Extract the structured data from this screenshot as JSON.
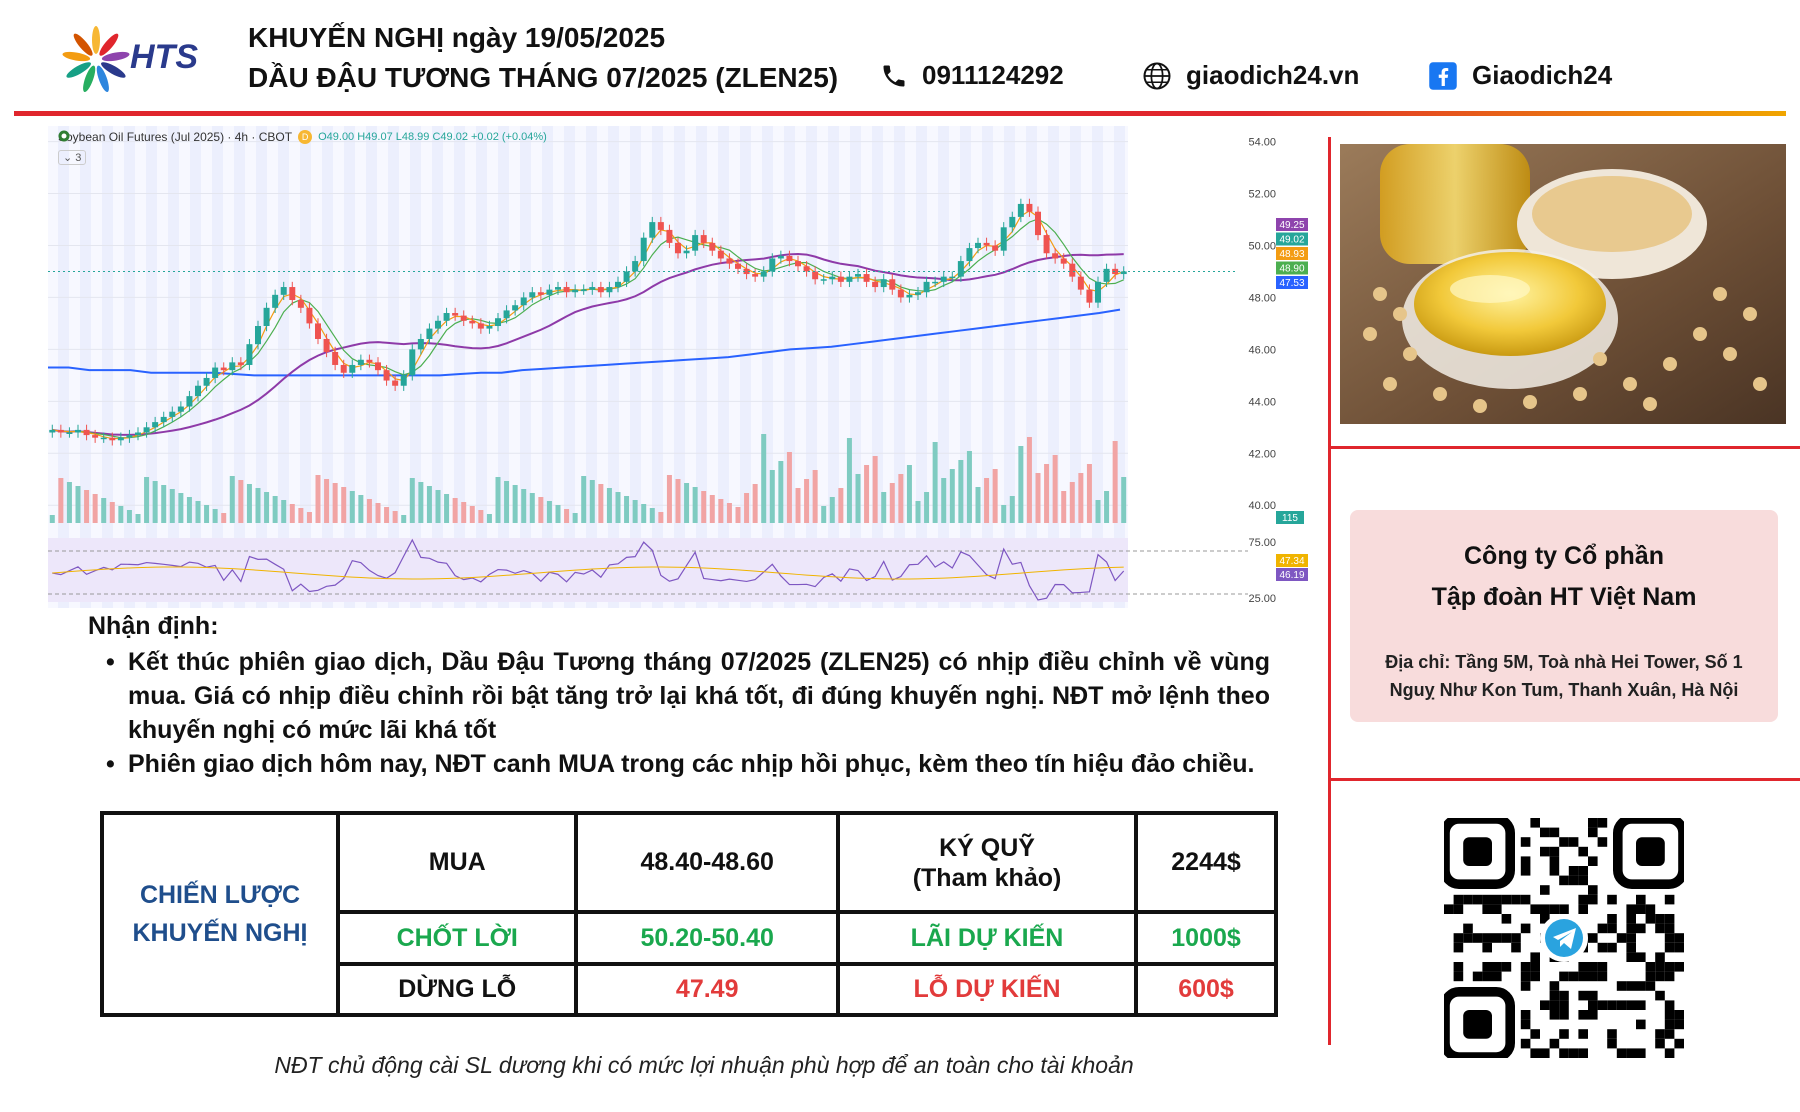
{
  "header": {
    "brand": "HTS",
    "title_line1": "KHUYẾN NGHỊ ngày 19/05/2025",
    "title_line2": "DẦU ĐẬU TƯƠNG THÁNG 07/2025 (ZLEN25)",
    "phone": "0911124292",
    "website": "giaodich24.vn",
    "facebook": "Giaodich24",
    "icons": [
      "phone-icon",
      "globe-icon",
      "facebook-icon"
    ]
  },
  "chart_data": {
    "type": "candlestick",
    "instrument": "Soybean Oil Futures (Jul 2025) · 4h · CBOT",
    "badge": "D",
    "ohlc": "O49.00 H49.07 L48.99 C49.02 +0.02 (+0.04%)",
    "indicator_count": "3",
    "y_ticks": [
      "54.00",
      "52.00",
      "50.00",
      "48.00",
      "46.00",
      "44.00",
      "42.00",
      "40.00"
    ],
    "ylim": [
      39.2,
      54.6
    ],
    "price_labels": [
      {
        "value": "49.25",
        "color": "#8e44ad"
      },
      {
        "value": "49.02",
        "color": "#26a69a"
      },
      {
        "value": "48.93",
        "color": "#f39c12"
      },
      {
        "value": "48.90",
        "color": "#4caf50"
      },
      {
        "value": "47.53",
        "color": "#2962ff"
      }
    ],
    "volume_label": "115",
    "rsi_ticks": [
      "75.00",
      "25.00"
    ],
    "rsi_labels": [
      {
        "value": "47.34",
        "color": "#f0b400"
      },
      {
        "value": "46.19",
        "color": "#7e57c2"
      }
    ],
    "closes": [
      42.9,
      42.8,
      42.8,
      42.9,
      42.7,
      42.6,
      42.6,
      42.5,
      42.6,
      42.7,
      42.8,
      43.0,
      43.2,
      43.4,
      43.6,
      43.8,
      44.2,
      44.6,
      44.9,
      45.3,
      45.2,
      45.5,
      45.4,
      46.2,
      46.9,
      47.6,
      48.1,
      48.4,
      47.9,
      47.6,
      47.0,
      46.4,
      45.9,
      45.4,
      45.1,
      45.4,
      45.6,
      45.5,
      45.2,
      44.8,
      44.6,
      45.0,
      46.0,
      46.4,
      46.8,
      47.1,
      47.4,
      47.3,
      47.1,
      47.0,
      46.8,
      46.9,
      47.2,
      47.5,
      47.7,
      48.0,
      48.2,
      48.1,
      48.3,
      48.4,
      48.2,
      48.3,
      48.3,
      48.4,
      48.2,
      48.4,
      48.6,
      49.0,
      49.4,
      50.3,
      50.9,
      50.6,
      50.1,
      49.7,
      49.8,
      50.4,
      50.1,
      49.8,
      49.5,
      49.3,
      49.1,
      48.9,
      48.8,
      49.0,
      49.5,
      49.6,
      49.4,
      49.2,
      49.0,
      48.7,
      48.7,
      48.8,
      48.6,
      48.8,
      48.9,
      48.6,
      48.4,
      48.7,
      48.3,
      48.0,
      48.1,
      48.2,
      48.6,
      48.6,
      48.8,
      48.8,
      49.4,
      49.9,
      50.1,
      50.0,
      49.8,
      50.7,
      51.1,
      51.6,
      51.3,
      50.4,
      49.7,
      49.5,
      49.3,
      48.8,
      48.3,
      47.8,
      48.6,
      49.1,
      48.9,
      49.0
    ],
    "ma_slow": [
      45.3,
      45.3,
      45.2,
      45.2,
      45.2,
      45.1,
      45.1,
      45.1,
      45.1,
      45.05,
      45.0,
      45.0,
      45.0,
      45.0,
      45.0,
      45.0,
      45.0,
      45.0,
      45.0,
      45.0,
      45.05,
      45.1,
      45.1,
      45.2,
      45.25,
      45.3,
      45.35,
      45.4,
      45.45,
      45.5,
      45.55,
      45.6,
      45.65,
      45.7,
      45.8,
      45.9,
      46.0,
      46.05,
      46.1,
      46.2,
      46.3,
      46.4,
      46.5,
      46.6,
      46.7,
      46.8,
      46.9,
      47.0,
      47.1,
      47.2,
      47.3,
      47.4,
      47.53
    ]
  },
  "right_panel": {
    "company_line1": "Công ty Cổ phần",
    "company_line2": "Tập đoàn HT Việt Nam",
    "address_line1": "Địa chỉ:  Tầng 5M, Toà nhà Hei Tower, Số 1",
    "address_line2": "Nguỵ Như Kon Tum, Thanh Xuân, Hà Nội",
    "photo_icon": "soybean-oil-photo",
    "qr_icon": "telegram-qr-code"
  },
  "analysis": {
    "heading": "Nhận định:",
    "bullet_mark": "•",
    "bullets": [
      "Kết thúc phiên giao dịch, Dầu Đậu Tương tháng 07/2025 (ZLEN25) có nhịp điều chỉnh về vùng mua. Giá có nhịp điều chỉnh rồi bật tăng trở lại khá tốt, đi đúng khuyến nghị. NĐT mở lệnh theo khuyến nghị có mức lãi khá tốt",
      "Phiên giao dịch hôm nay, NĐT canh MUA trong các nhịp hồi phục, kèm theo tín hiệu đảo chiều."
    ]
  },
  "strategy": {
    "label_line1": "CHIẾN LƯỢC",
    "label_line2": "KHUYẾN NGHỊ",
    "rows": [
      {
        "action": "MUA",
        "range": "48.40-48.60",
        "metric_line1": "KÝ QUỸ",
        "metric_line2": "(Tham khảo)",
        "amount": "2244$",
        "color": "#111111"
      },
      {
        "action": "CHỐT LỜI",
        "range": "50.20-50.40",
        "metric_line1": "LÃI DỰ KIẾN",
        "metric_line2": "",
        "amount": "1000$",
        "color": "#1aa84e"
      },
      {
        "action": "DỪNG LỖ",
        "range": "47.49",
        "metric_line1": "LỖ DỰ KIẾN",
        "metric_line2": "",
        "amount": "600$",
        "color": "#e23b3b"
      }
    ]
  },
  "footer": {
    "note": "NĐT chủ động cài SL dương khi có mức lợi nhuận phù hợp để an toàn cho tài khoản"
  }
}
